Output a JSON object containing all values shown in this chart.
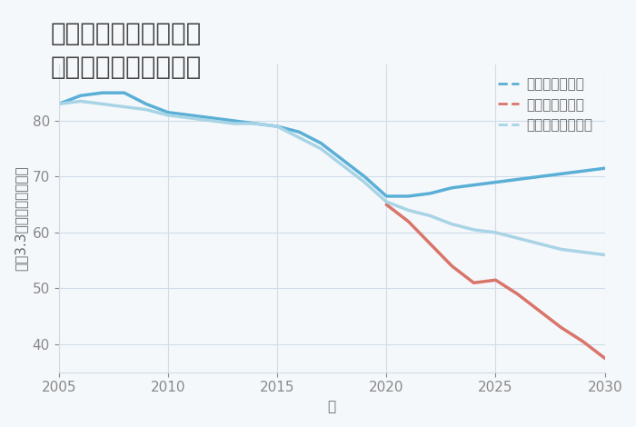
{
  "title": "岐阜県大垣市直江町の\n中古戸建ての価格推移",
  "xlabel": "年",
  "ylabel": "坪（3.3㎡）単価（万円）",
  "good_x": [
    2005,
    2006,
    2007,
    2008,
    2009,
    2010,
    2011,
    2012,
    2013,
    2014,
    2015,
    2016,
    2017,
    2018,
    2019,
    2020,
    2021,
    2022,
    2023,
    2024,
    2025,
    2026,
    2027,
    2028,
    2029,
    2030
  ],
  "good_y": [
    83.0,
    84.5,
    85.0,
    85.0,
    83.0,
    81.5,
    81.0,
    80.5,
    80.0,
    79.5,
    79.0,
    78.0,
    76.0,
    73.0,
    70.0,
    66.5,
    66.5,
    67.0,
    68.0,
    68.5,
    69.0,
    69.5,
    70.0,
    70.5,
    71.0,
    71.5
  ],
  "bad_x": [
    2020,
    2021,
    2022,
    2023,
    2024,
    2025,
    2026,
    2027,
    2028,
    2029,
    2030
  ],
  "bad_y": [
    65.0,
    62.0,
    58.0,
    54.0,
    51.0,
    51.5,
    49.0,
    46.0,
    43.0,
    40.5,
    37.5
  ],
  "normal_x": [
    2005,
    2006,
    2007,
    2008,
    2009,
    2010,
    2011,
    2012,
    2013,
    2014,
    2015,
    2016,
    2017,
    2018,
    2019,
    2020,
    2021,
    2022,
    2023,
    2024,
    2025,
    2026,
    2027,
    2028,
    2029,
    2030
  ],
  "normal_y": [
    83.0,
    83.5,
    83.0,
    82.5,
    82.0,
    81.0,
    80.5,
    80.0,
    79.5,
    79.5,
    79.0,
    77.0,
    75.0,
    72.0,
    69.0,
    65.5,
    64.0,
    63.0,
    61.5,
    60.5,
    60.0,
    59.0,
    58.0,
    57.0,
    56.5,
    56.0
  ],
  "good_color": "#5aafd6",
  "bad_color": "#d9756a",
  "normal_color": "#a8d4e6",
  "good_label": "グッドシナリオ",
  "bad_label": "バッドシナリオ",
  "normal_label": "ノーマルシナリオ",
  "xlim": [
    2005,
    2030
  ],
  "ylim": [
    35,
    90
  ],
  "xticks": [
    2005,
    2010,
    2015,
    2020,
    2025,
    2030
  ],
  "yticks": [
    40,
    50,
    60,
    70,
    80
  ],
  "background_color": "#f5f8fb",
  "grid_color": "#d0dce8",
  "title_fontsize": 20,
  "axis_fontsize": 11,
  "legend_fontsize": 11,
  "line_width": 2.5
}
